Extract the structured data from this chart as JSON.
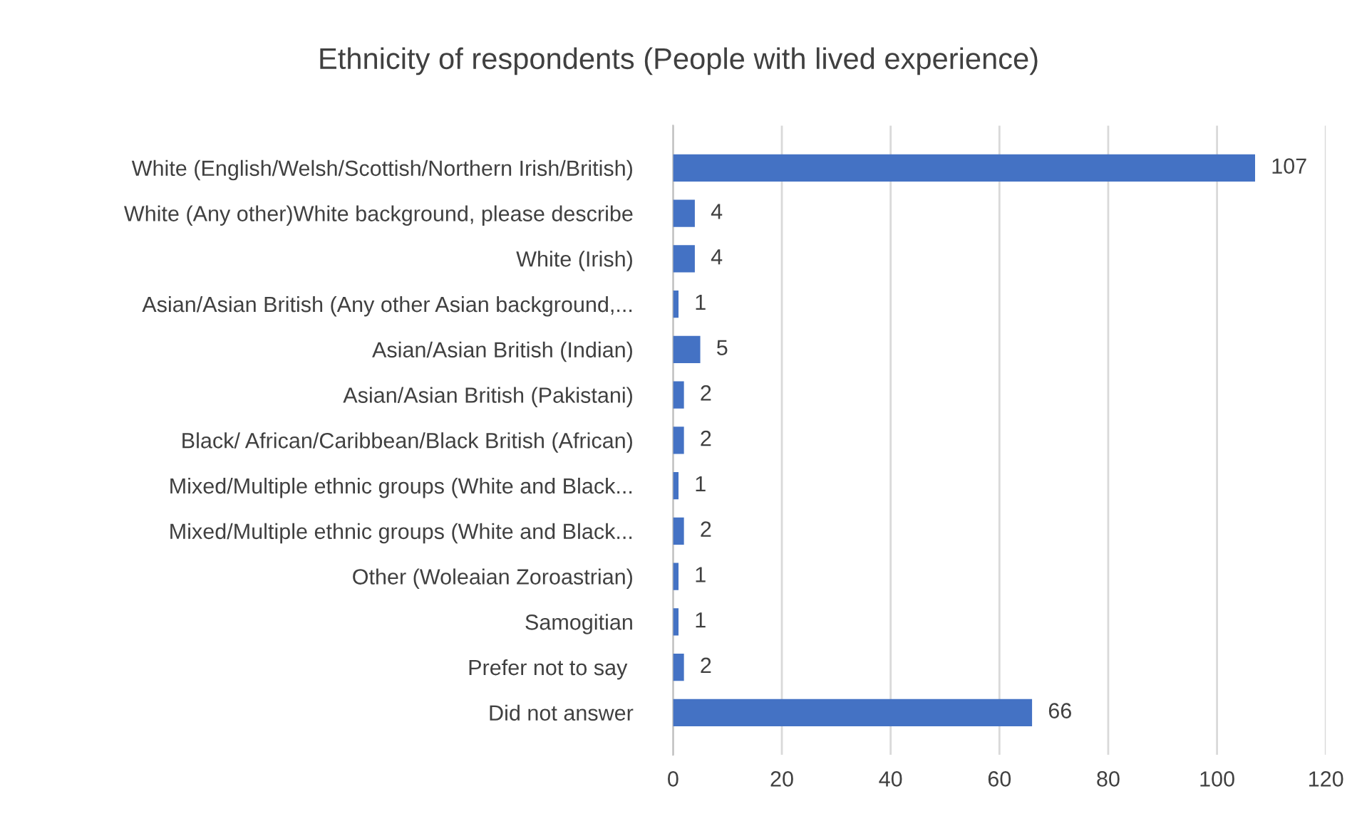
{
  "chart_data": {
    "type": "bar",
    "orientation": "horizontal",
    "title": "Ethnicity of respondents (People with lived experience)",
    "categories": [
      "White (English/Welsh/Scottish/Northern Irish/British)",
      "White (Any other)White background, please describe",
      "White (Irish)",
      "Asian/Asian British (Any other Asian background,...",
      "Asian/Asian British (Indian)",
      "Asian/Asian British (Pakistani)",
      "Black/ African/Caribbean/Black British (African)",
      "Mixed/Multiple ethnic groups (White and Black...",
      "Mixed/Multiple ethnic groups (White and Black...",
      "Other (Woleaian Zoroastrian)",
      "Samogitian",
      "Prefer not to say ",
      "Did not answer"
    ],
    "values": [
      107,
      4,
      4,
      1,
      5,
      2,
      2,
      1,
      2,
      1,
      1,
      2,
      66
    ],
    "color": "#4472c4",
    "xlim": [
      0,
      120
    ],
    "xticks": [
      0,
      20,
      40,
      60,
      80,
      100,
      120
    ],
    "grid": "x",
    "data_labels": true
  }
}
